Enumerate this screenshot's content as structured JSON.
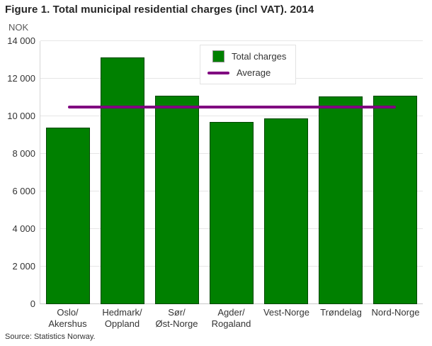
{
  "title": "Figure 1. Total municipal residential charges (incl VAT). 2014",
  "source": "Source: Statistics Norway.",
  "legend": {
    "items": [
      {
        "label": "Total charges",
        "swatch": "square",
        "color": "#008000"
      },
      {
        "label": "Average",
        "swatch": "line",
        "color": "#800080"
      }
    ]
  },
  "colors": {
    "bar_green": "#008000",
    "average_purple": "#800080",
    "gridline": "#e6e6e6",
    "text": "#333333"
  },
  "chart_data": {
    "type": "bar",
    "title": "Figure 1. Total municipal residential charges (incl VAT). 2014",
    "unit_label": "NOK",
    "categories": [
      [
        "Oslo/",
        "Akershus"
      ],
      [
        "Hedmark/",
        "Oppland"
      ],
      [
        "Sør/",
        "Øst-Norge"
      ],
      [
        "Agder/",
        "Rogaland"
      ],
      [
        "Vest-Norge"
      ],
      [
        "Trøndelag"
      ],
      [
        "Nord-Norge"
      ]
    ],
    "series": [
      {
        "name": "Total charges",
        "color": "#008000",
        "values": [
          9400,
          13150,
          11100,
          9700,
          9900,
          11050,
          11100
        ]
      }
    ],
    "average_line": {
      "name": "Average",
      "value": 10500,
      "color": "#800080"
    },
    "xlabel": "",
    "ylabel": "NOK",
    "ylim": [
      0,
      14000
    ],
    "yticks": [
      0,
      2000,
      4000,
      6000,
      8000,
      10000,
      12000,
      14000
    ],
    "ytick_labels": [
      "0",
      "2 000",
      "4 000",
      "6 000",
      "8 000",
      "10 000",
      "12 000",
      "14 000"
    ],
    "grid": true,
    "legend_position": "top-center"
  }
}
